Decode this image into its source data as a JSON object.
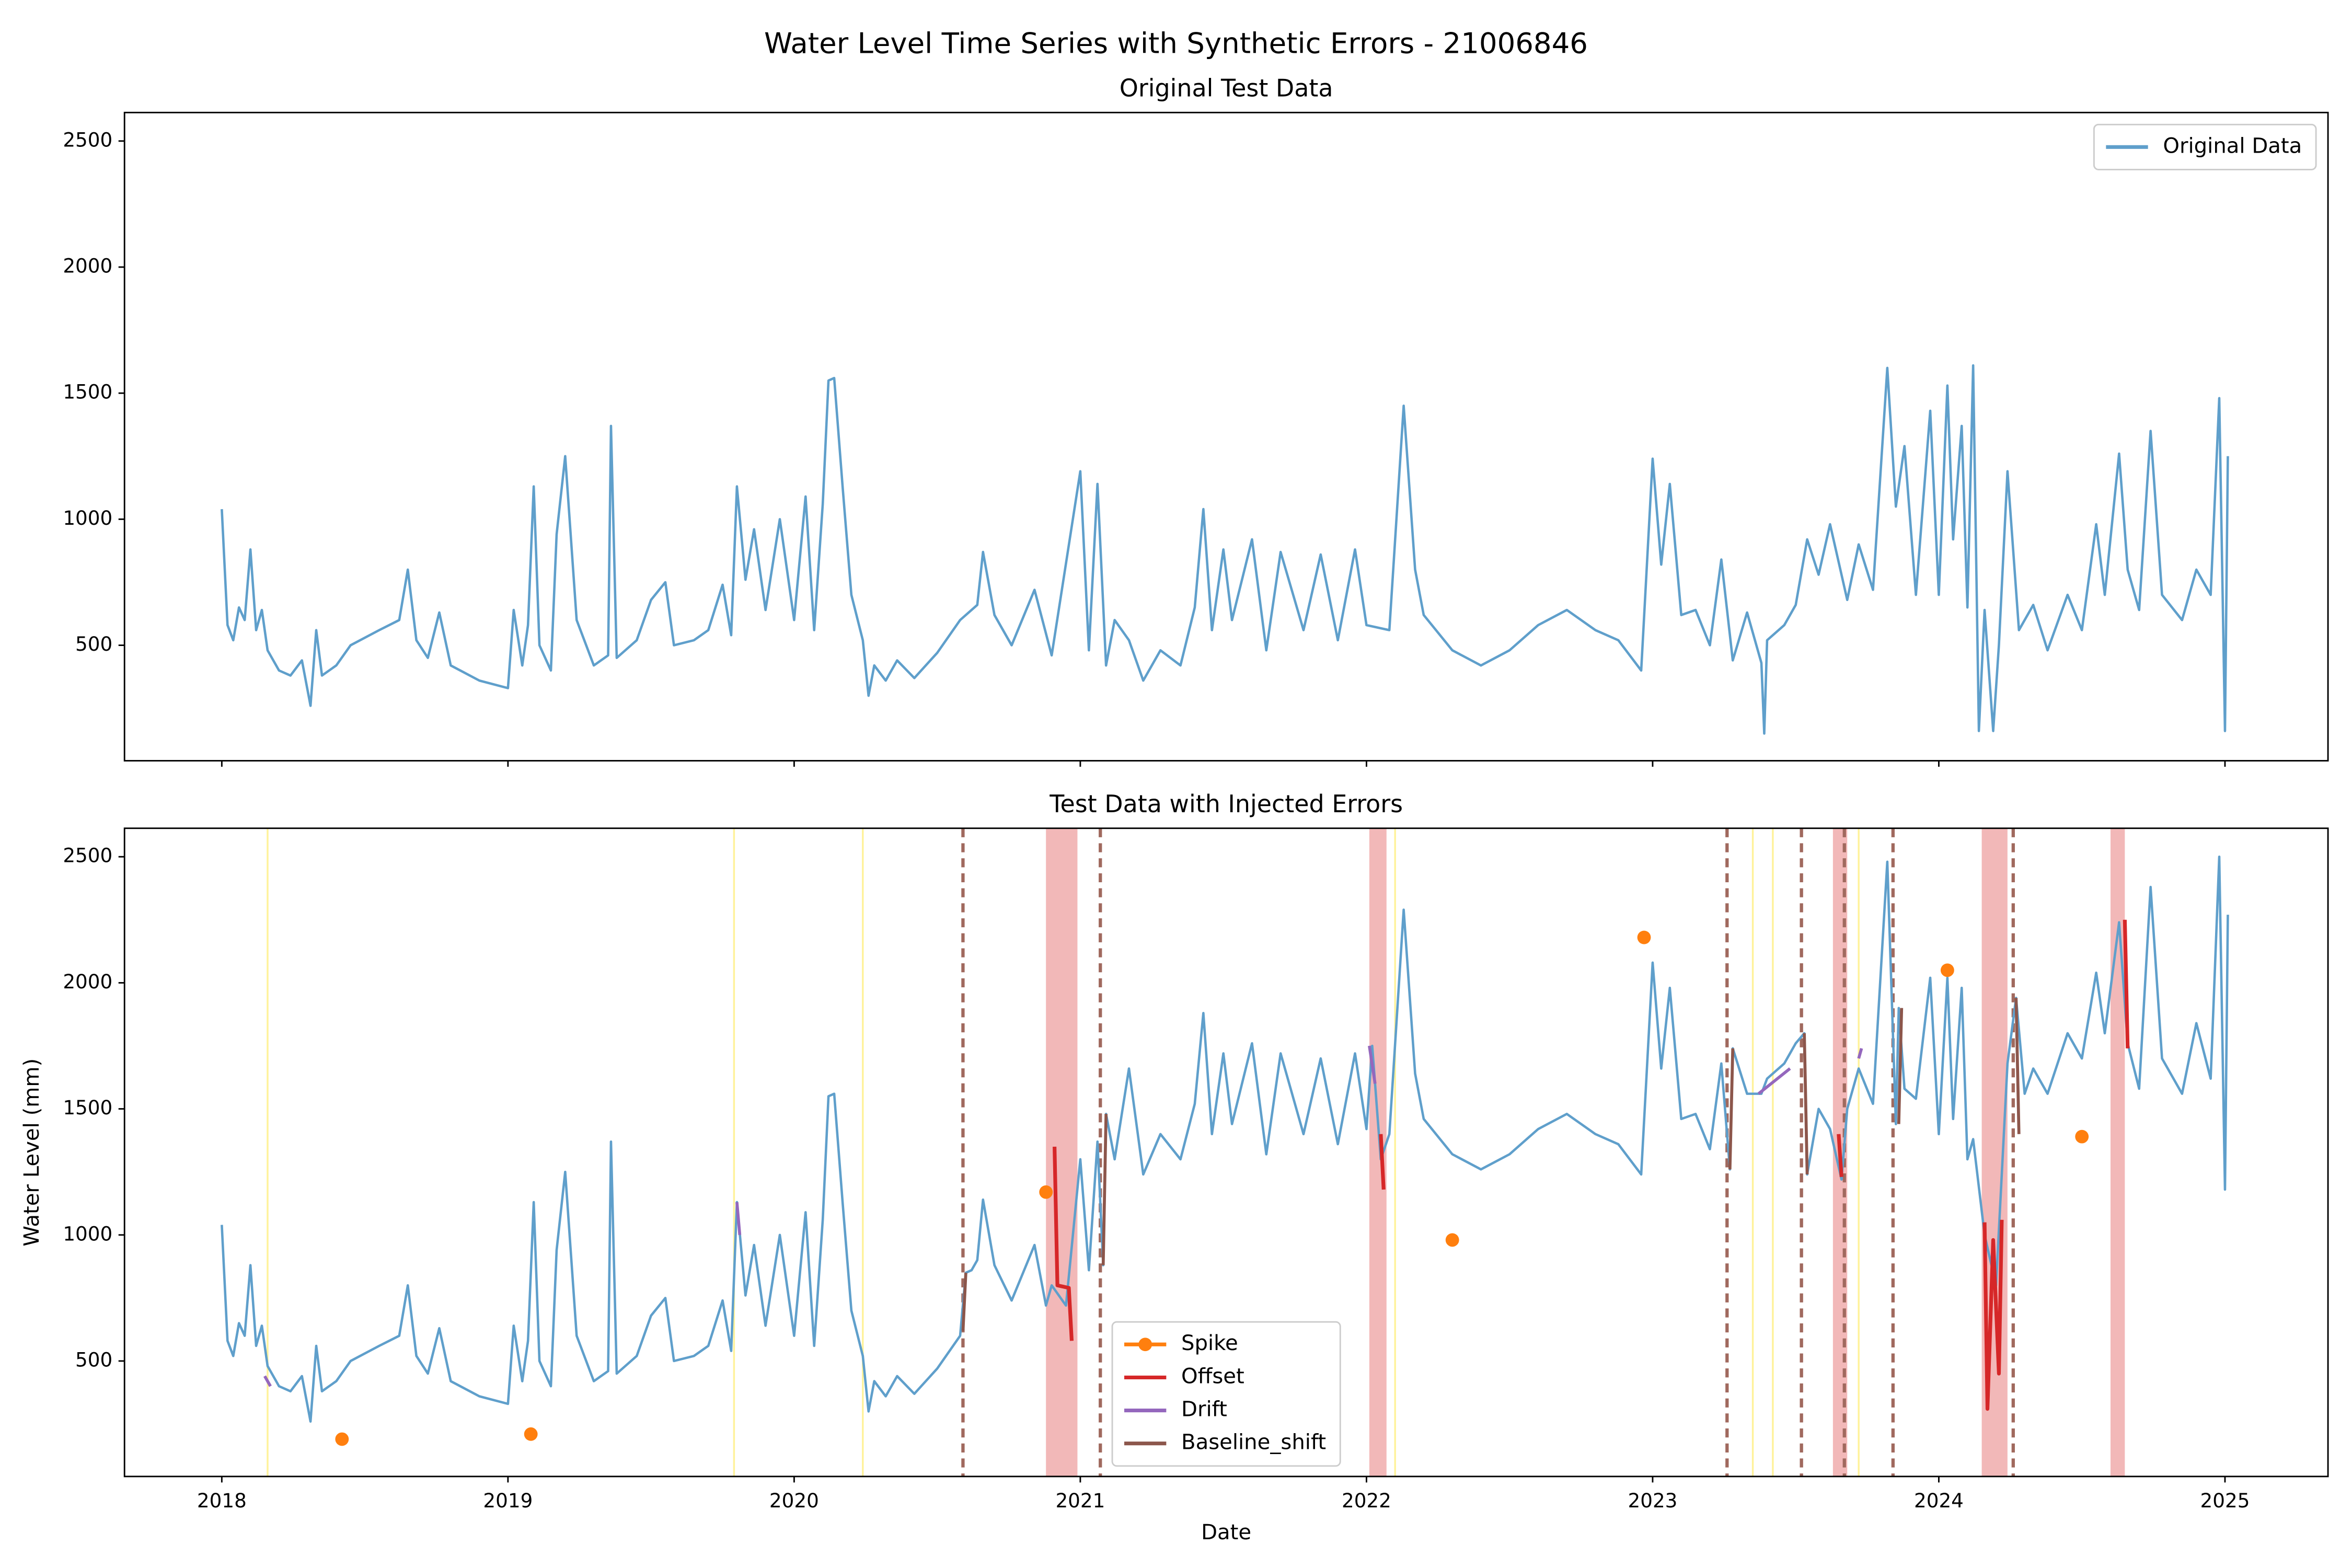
{
  "title": "Water Level Time Series with Synthetic Errors - 21006846",
  "chart_data": [
    {
      "type": "line",
      "title": "Original Test Data",
      "xlim": [
        2017.66,
        2025.36
      ],
      "ylim": [
        42,
        2613
      ],
      "xticks": [
        2018,
        2019,
        2020,
        2021,
        2022,
        2023,
        2024,
        2025
      ],
      "yticks": [
        500,
        1000,
        1500,
        2000,
        2500
      ],
      "show_xtick_labels": false,
      "legend": "upper right",
      "series": [
        {
          "name": "Original Data",
          "color": "#5f9fcb",
          "x": [
            2018.0,
            2018.02,
            2018.04,
            2018.06,
            2018.08,
            2018.1,
            2018.12,
            2018.14,
            2018.16,
            2018.2,
            2018.24,
            2018.28,
            2018.31,
            2018.33,
            2018.35,
            2018.4,
            2018.45,
            2018.55,
            2018.62,
            2018.65,
            2018.68,
            2018.72,
            2018.76,
            2018.8,
            2018.9,
            2019.0,
            2019.02,
            2019.05,
            2019.07,
            2019.09,
            2019.11,
            2019.15,
            2019.17,
            2019.2,
            2019.24,
            2019.3,
            2019.35,
            2019.36,
            2019.38,
            2019.45,
            2019.5,
            2019.55,
            2019.58,
            2019.65,
            2019.7,
            2019.75,
            2019.78,
            2019.8,
            2019.83,
            2019.86,
            2019.9,
            2019.95,
            2020.0,
            2020.04,
            2020.07,
            2020.1,
            2020.12,
            2020.14,
            2020.17,
            2020.2,
            2020.24,
            2020.26,
            2020.28,
            2020.32,
            2020.36,
            2020.42,
            2020.5,
            2020.58,
            2020.64,
            2020.66,
            2020.7,
            2020.76,
            2020.84,
            2020.9,
            2021.0,
            2021.03,
            2021.06,
            2021.09,
            2021.12,
            2021.17,
            2021.22,
            2021.28,
            2021.35,
            2021.4,
            2021.43,
            2021.46,
            2021.5,
            2021.53,
            2021.6,
            2021.65,
            2021.7,
            2021.78,
            2021.84,
            2021.9,
            2021.96,
            2022.0,
            2022.08,
            2022.13,
            2022.17,
            2022.2,
            2022.3,
            2022.4,
            2022.5,
            2022.6,
            2022.7,
            2022.8,
            2022.88,
            2022.96,
            2023.0,
            2023.03,
            2023.06,
            2023.1,
            2023.15,
            2023.2,
            2023.24,
            2023.28,
            2023.33,
            2023.38,
            2023.39,
            2023.4,
            2023.46,
            2023.5,
            2023.54,
            2023.58,
            2023.62,
            2023.68,
            2023.72,
            2023.77,
            2023.82,
            2023.85,
            2023.88,
            2023.92,
            2023.97,
            2024.0,
            2024.03,
            2024.05,
            2024.08,
            2024.1,
            2024.12,
            2024.14,
            2024.16,
            2024.19,
            2024.21,
            2024.24,
            2024.28,
            2024.33,
            2024.38,
            2024.45,
            2024.5,
            2024.55,
            2024.58,
            2024.63,
            2024.66,
            2024.7,
            2024.74,
            2024.78,
            2024.85,
            2024.9,
            2024.95,
            2024.98,
            2025.0,
            2025.01
          ],
          "values": [
            1040,
            580,
            520,
            650,
            600,
            880,
            560,
            640,
            480,
            400,
            380,
            440,
            260,
            560,
            380,
            420,
            500,
            560,
            600,
            800,
            520,
            450,
            630,
            420,
            360,
            330,
            640,
            420,
            580,
            1130,
            500,
            400,
            940,
            1250,
            600,
            420,
            460,
            1370,
            450,
            520,
            680,
            750,
            500,
            520,
            560,
            740,
            540,
            1130,
            760,
            960,
            640,
            1000,
            600,
            1090,
            560,
            1060,
            1550,
            1560,
            1120,
            700,
            520,
            300,
            420,
            360,
            440,
            370,
            470,
            600,
            660,
            870,
            620,
            500,
            720,
            460,
            1190,
            480,
            1140,
            420,
            600,
            520,
            360,
            480,
            420,
            650,
            1040,
            560,
            880,
            600,
            920,
            480,
            870,
            560,
            860,
            520,
            880,
            580,
            560,
            1450,
            800,
            620,
            480,
            420,
            480,
            580,
            640,
            560,
            520,
            400,
            1240,
            820,
            1140,
            620,
            640,
            500,
            840,
            440,
            630,
            430,
            150,
            520,
            580,
            660,
            920,
            780,
            980,
            680,
            900,
            720,
            1600,
            1050,
            1290,
            700,
            1430,
            700,
            1530,
            920,
            1370,
            650,
            1610,
            160,
            640,
            160,
            500,
            1190,
            560,
            660,
            480,
            700,
            560,
            980,
            700,
            1260,
            800,
            640,
            1350,
            700,
            600,
            800,
            700,
            1480,
            160,
            1250
          ]
        }
      ]
    },
    {
      "type": "line",
      "title": "Test Data with Injected Errors",
      "xlabel": "Date",
      "ylabel": "Water Level (mm)",
      "xlim": [
        2017.66,
        2025.36
      ],
      "ylim": [
        42,
        2613
      ],
      "xticks": [
        2018,
        2019,
        2020,
        2021,
        2022,
        2023,
        2024,
        2025
      ],
      "yticks": [
        500,
        1000,
        1500,
        2000,
        2500
      ],
      "legend": "lower center",
      "highlight_lines": [
        2018.16,
        2019.79,
        2020.24,
        2022.1,
        2023.35,
        2023.42,
        2023.72
      ],
      "highlight_color": "#fff29a",
      "offset_spans": [
        [
          2020.88,
          2020.99
        ],
        [
          2022.01,
          2022.07
        ],
        [
          2023.63,
          2023.68
        ],
        [
          2024.15,
          2024.24
        ],
        [
          2024.6,
          2024.65
        ]
      ],
      "span_color": "#f2b8b8",
      "shift_lines": [
        2020.59,
        2021.07,
        2023.26,
        2023.52,
        2023.67,
        2023.84,
        2024.26
      ],
      "shift_color": "#a0695e",
      "series": [
        {
          "color": "#5f9fcb",
          "x": [
            2018.0,
            2018.02,
            2018.04,
            2018.06,
            2018.08,
            2018.1,
            2018.12,
            2018.14,
            2018.16,
            2018.2,
            2018.24,
            2018.28,
            2018.31,
            2018.33,
            2018.35,
            2018.4,
            2018.45,
            2018.55,
            2018.62,
            2018.65,
            2018.68,
            2018.72,
            2018.76,
            2018.8,
            2018.9,
            2019.0,
            2019.02,
            2019.05,
            2019.07,
            2019.09,
            2019.11,
            2019.15,
            2019.17,
            2019.2,
            2019.24,
            2019.3,
            2019.35,
            2019.36,
            2019.38,
            2019.45,
            2019.5,
            2019.55,
            2019.58,
            2019.65,
            2019.7,
            2019.75,
            2019.78,
            2019.8,
            2019.83,
            2019.86,
            2019.9,
            2019.95,
            2020.0,
            2020.04,
            2020.07,
            2020.1,
            2020.12,
            2020.14,
            2020.17,
            2020.2,
            2020.24,
            2020.26,
            2020.28,
            2020.32,
            2020.36,
            2020.42,
            2020.5,
            2020.58,
            2020.6,
            2020.62,
            2020.64,
            2020.66,
            2020.7,
            2020.76,
            2020.84,
            2020.88,
            2020.9,
            2020.95,
            2021.0,
            2021.03,
            2021.06,
            2021.08,
            2021.09,
            2021.12,
            2021.17,
            2021.22,
            2021.28,
            2021.35,
            2021.4,
            2021.43,
            2021.46,
            2021.5,
            2021.53,
            2021.6,
            2021.65,
            2021.7,
            2021.78,
            2021.84,
            2021.9,
            2021.96,
            2022.0,
            2022.02,
            2022.05,
            2022.08,
            2022.13,
            2022.17,
            2022.2,
            2022.3,
            2022.4,
            2022.5,
            2022.6,
            2022.7,
            2022.8,
            2022.88,
            2022.96,
            2023.0,
            2023.03,
            2023.06,
            2023.1,
            2023.15,
            2023.2,
            2023.24,
            2023.27,
            2023.28,
            2023.33,
            2023.38,
            2023.4,
            2023.46,
            2023.5,
            2023.53,
            2023.54,
            2023.58,
            2023.62,
            2023.66,
            2023.68,
            2023.72,
            2023.77,
            2023.82,
            2023.85,
            2023.86,
            2023.88,
            2023.92,
            2023.97,
            2024.0,
            2024.03,
            2024.05,
            2024.08,
            2024.1,
            2024.12,
            2024.16,
            2024.2,
            2024.24,
            2024.27,
            2024.3,
            2024.33,
            2024.38,
            2024.45,
            2024.5,
            2024.55,
            2024.58,
            2024.63,
            2024.66,
            2024.7,
            2024.74,
            2024.78,
            2024.85,
            2024.9,
            2024.95,
            2024.98,
            2025.0,
            2025.01
          ],
          "values": [
            1040,
            580,
            520,
            650,
            600,
            880,
            560,
            640,
            480,
            400,
            380,
            440,
            260,
            560,
            380,
            420,
            500,
            560,
            600,
            800,
            520,
            450,
            630,
            420,
            360,
            330,
            640,
            420,
            580,
            1130,
            500,
            400,
            940,
            1250,
            600,
            420,
            460,
            1370,
            450,
            520,
            680,
            750,
            500,
            520,
            560,
            740,
            540,
            1130,
            760,
            960,
            640,
            1000,
            600,
            1090,
            560,
            1060,
            1550,
            1560,
            1120,
            700,
            520,
            300,
            420,
            360,
            440,
            370,
            470,
            600,
            850,
            860,
            900,
            1140,
            880,
            740,
            960,
            720,
            800,
            720,
            1300,
            860,
            1370,
            880,
            1480,
            1300,
            1660,
            1240,
            1400,
            1300,
            1520,
            1880,
            1400,
            1720,
            1440,
            1760,
            1320,
            1720,
            1400,
            1700,
            1360,
            1720,
            1420,
            1750,
            1300,
            1400,
            2290,
            1640,
            1460,
            1320,
            1260,
            1320,
            1420,
            1480,
            1400,
            1360,
            1240,
            2080,
            1660,
            1980,
            1460,
            1480,
            1340,
            1680,
            1260,
            1740,
            1560,
            1560,
            1620,
            1680,
            1760,
            1800,
            1240,
            1500,
            1420,
            1220,
            1500,
            1660,
            1520,
            2480,
            1440,
            1900,
            1580,
            1540,
            2020,
            1400,
            2020,
            1460,
            1980,
            1300,
            1380,
            1000,
            800,
            1680,
            1940,
            1560,
            1660,
            1560,
            1800,
            1700,
            2040,
            1800,
            2240,
            1760,
            1580,
            2380,
            1700,
            1560,
            1840,
            1620,
            2500,
            1180,
            2270
          ]
        },
        {
          "name": "Spike",
          "color": "#ff7f0e",
          "marker": true,
          "line": false,
          "x": [
            2018.42,
            2019.08,
            2020.88,
            2022.3,
            2022.97,
            2024.03,
            2024.5
          ],
          "values": [
            190,
            210,
            1170,
            980,
            2180,
            2050,
            1390
          ]
        },
        {
          "name": "Offset",
          "color": "#d62728",
          "width": 2.5,
          "x": [
            2020.91,
            2020.92,
            2020.96,
            2020.97,
            null,
            2022.05,
            2022.06,
            null,
            2023.65,
            2023.66,
            null,
            2024.16,
            2024.17,
            2024.19,
            2024.21,
            2024.22,
            null,
            2024.65,
            2024.66
          ],
          "values": [
            1350,
            800,
            790,
            580,
            null,
            1400,
            1180,
            null,
            1400,
            1230,
            null,
            1050,
            310,
            980,
            450,
            1060,
            null,
            2250,
            1740
          ]
        },
        {
          "name": "Drift",
          "color": "#9467bd",
          "width": 2,
          "x": [
            2018.15,
            2018.17,
            null,
            2019.8,
            2019.81,
            null,
            2022.01,
            2022.03,
            null,
            2023.37,
            2023.48,
            null,
            2023.72,
            2023.73
          ],
          "values": [
            440,
            400,
            null,
            1130,
            1000,
            null,
            1750,
            1600,
            null,
            1560,
            1660,
            null,
            1700,
            1740
          ]
        },
        {
          "name": "Baseline_shift",
          "color": "#8c564b",
          "width": 2,
          "x": [
            2020.59,
            2020.6,
            null,
            2021.08,
            2021.09,
            null,
            2023.27,
            2023.28,
            null,
            2023.53,
            2023.54,
            null,
            2023.86,
            2023.87,
            null,
            2024.27,
            2024.28
          ],
          "values": [
            620,
            850,
            null,
            880,
            1480,
            null,
            1260,
            1740,
            null,
            1800,
            1240,
            null,
            1440,
            1900,
            null,
            1940,
            1400
          ]
        }
      ]
    }
  ]
}
